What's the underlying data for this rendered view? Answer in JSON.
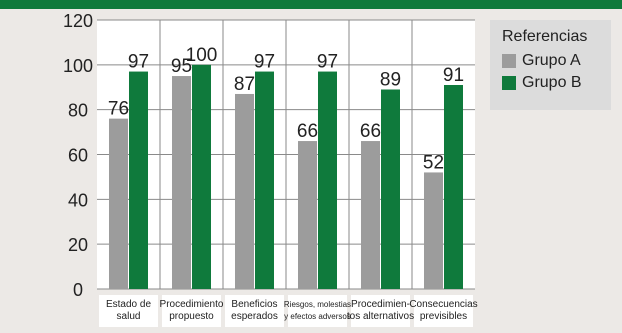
{
  "colors": {
    "group_a": "#9c9c9c",
    "group_b": "#0f7a3c",
    "header": "#0f7a3c"
  },
  "legend": {
    "title": "Referencias",
    "items": [
      {
        "label": "Grupo A",
        "color": "#9c9c9c"
      },
      {
        "label": "Grupo B",
        "color": "#0f7a3c"
      }
    ]
  },
  "chart_data": {
    "type": "bar",
    "categories": [
      [
        "Estado de",
        "salud"
      ],
      [
        "Procedimiento",
        "propuesto"
      ],
      [
        "Beneficios",
        "esperados"
      ],
      [
        "Riesgos, molestias",
        "y efectos adversos"
      ],
      [
        "Procedimien-",
        "tos alternativos"
      ],
      [
        "Consecuencias",
        "previsibles"
      ]
    ],
    "series": [
      {
        "name": "Grupo A",
        "values": [
          76,
          95,
          87,
          66,
          66,
          52
        ]
      },
      {
        "name": "Grupo B",
        "values": [
          97,
          100,
          97,
          97,
          89,
          91
        ]
      }
    ],
    "ylim": [
      0,
      120
    ],
    "yticks": [
      0,
      20,
      40,
      60,
      80,
      100,
      120
    ],
    "grid": true,
    "legend_position": "top-right"
  }
}
